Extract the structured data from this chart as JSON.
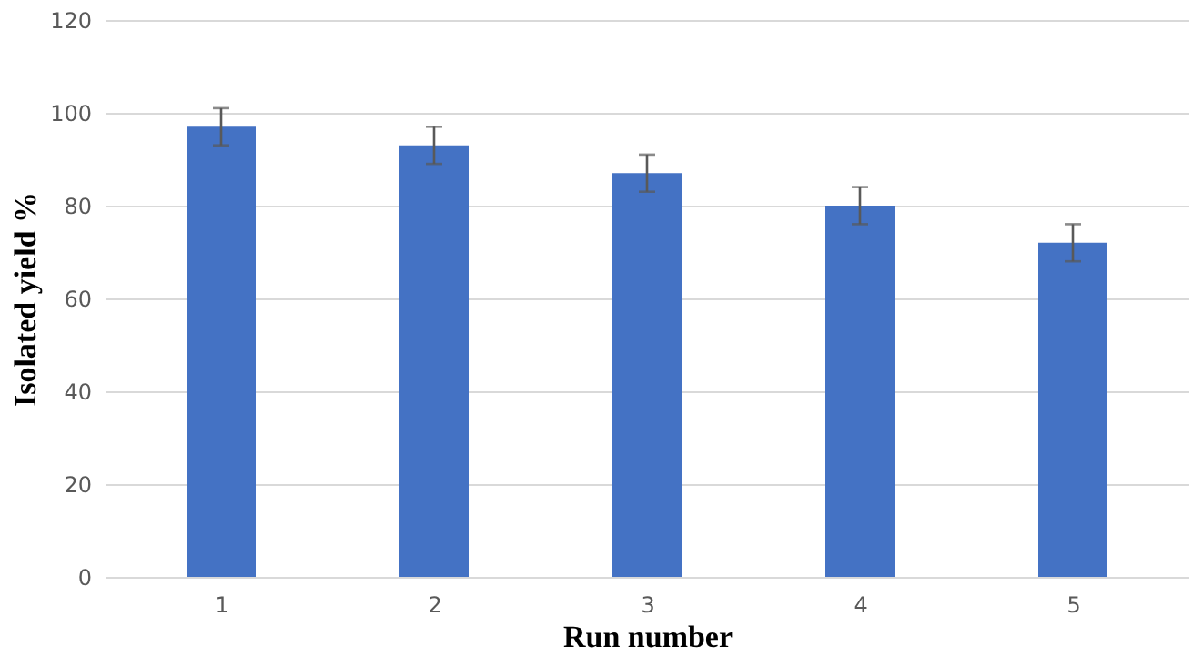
{
  "chart_data": {
    "type": "bar",
    "xlabel": "Run number",
    "ylabel": "Isolated yield %",
    "categories": [
      "1",
      "2",
      "3",
      "4",
      "5"
    ],
    "values": [
      97,
      93,
      87,
      80,
      72
    ],
    "errors": [
      4,
      4,
      4,
      4,
      4
    ],
    "color": "#4472c4",
    "ylim": [
      0,
      120
    ],
    "yticks": [
      0,
      20,
      40,
      60,
      80,
      100,
      120
    ],
    "grid": "y"
  }
}
